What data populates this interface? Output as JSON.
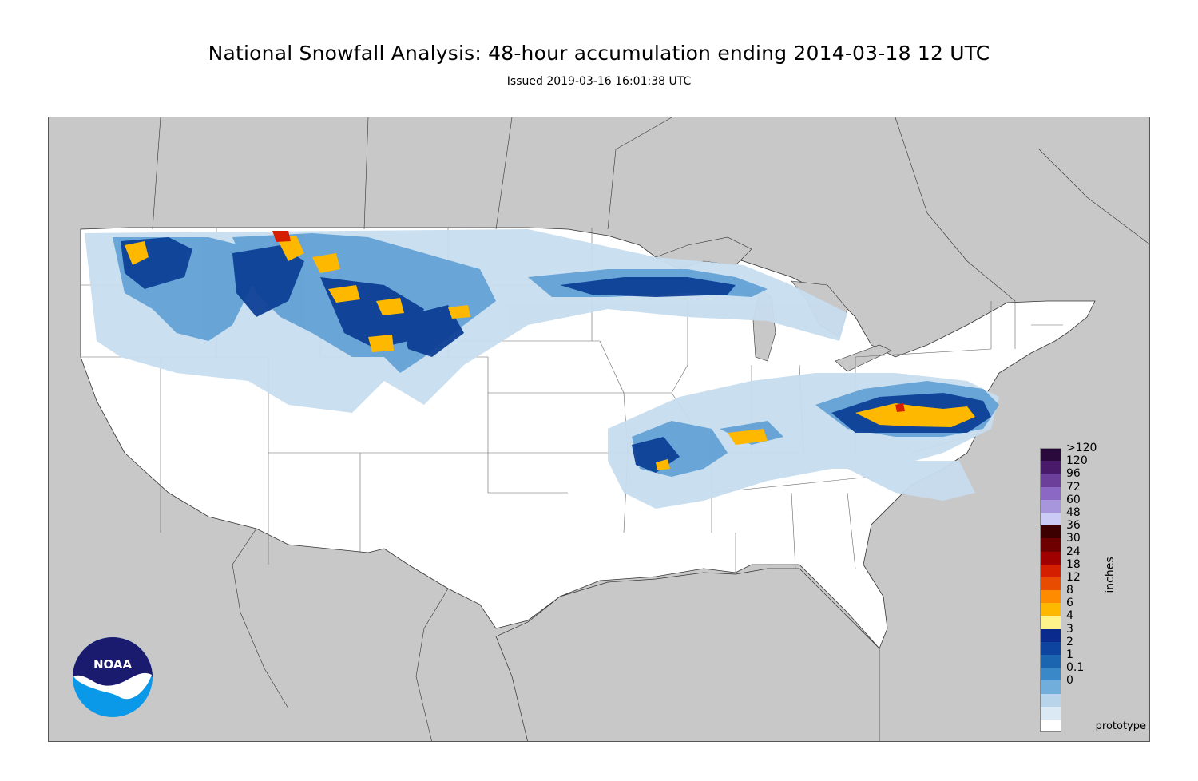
{
  "title": "National Snowfall Analysis: 48-hour accumulation ending 2014-03-18 12 UTC",
  "subtitle": "Issued 2019-03-16 16:01:38 UTC",
  "units_label": "inches",
  "watermark": "prototype",
  "logo_text": "NOAA",
  "legend": [
    {
      "label": ">120",
      "color": "#2a0a3c"
    },
    {
      "label": "120",
      "color": "#4a1a6a"
    },
    {
      "label": "96",
      "color": "#6b3f9a"
    },
    {
      "label": "72",
      "color": "#8a68c4"
    },
    {
      "label": "60",
      "color": "#a896dc"
    },
    {
      "label": "48",
      "color": "#cccbf5"
    },
    {
      "label": "36",
      "color": "#3d0000"
    },
    {
      "label": "30",
      "color": "#6e0000"
    },
    {
      "label": "24",
      "color": "#a00000"
    },
    {
      "label": "18",
      "color": "#d42000"
    },
    {
      "label": "12",
      "color": "#e84c00"
    },
    {
      "label": "8",
      "color": "#ff8c00"
    },
    {
      "label": "6",
      "color": "#ffb800"
    },
    {
      "label": "4",
      "color": "#fff38a"
    },
    {
      "label": "3",
      "color": "#0a2a8e"
    },
    {
      "label": "2",
      "color": "#0d44a0"
    },
    {
      "label": "1",
      "color": "#1a64b0"
    },
    {
      "label": "0.1",
      "color": "#3a88c8"
    },
    {
      "label": "0",
      "color": "#72aedc"
    }
  ],
  "colors": {
    "map_background": "#c8c8c8",
    "land": "#ffffff",
    "border": "#555555"
  }
}
